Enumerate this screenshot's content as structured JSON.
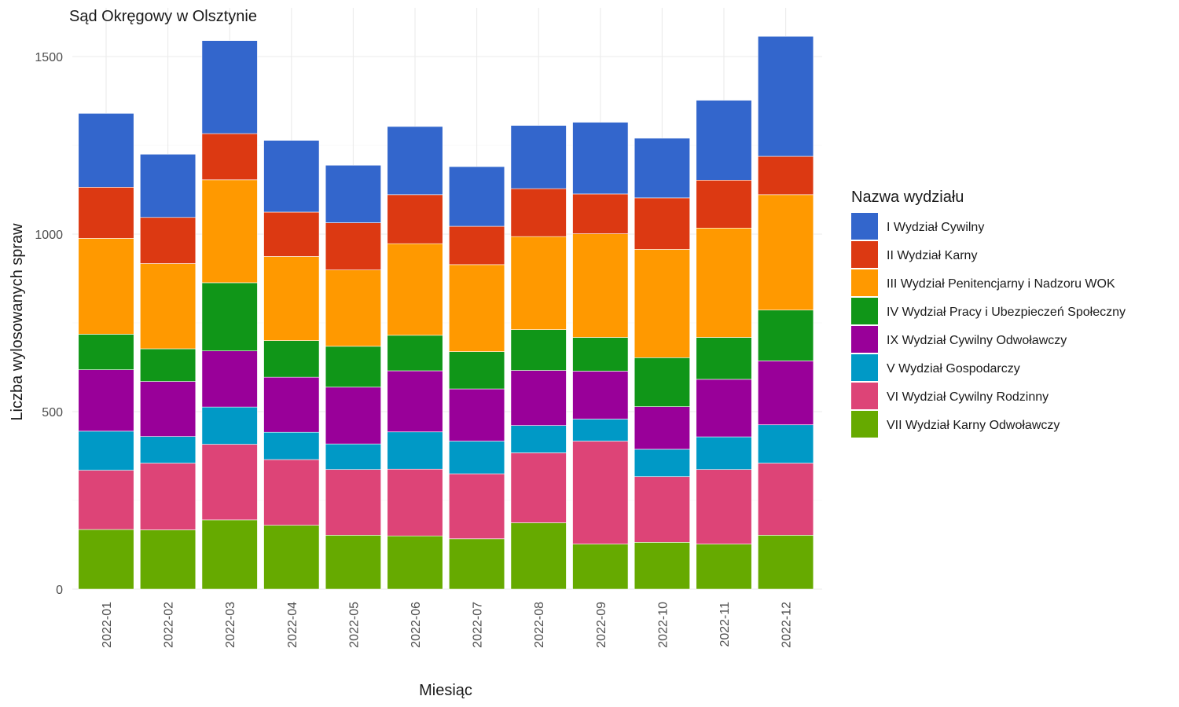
{
  "chart_data": {
    "type": "bar",
    "stacked": true,
    "title": "Sąd Okręgowy w Olsztynie",
    "xlabel": "Miesiąc",
    "ylabel": "Liczba wylosowanych spraw",
    "ylim": [
      0,
      1600
    ],
    "yticks": [
      0,
      500,
      1000,
      1500
    ],
    "grid": true,
    "legend_title": "Nazwa wydziału",
    "legend_position": "right",
    "categories": [
      "2022-01",
      "2022-02",
      "2022-03",
      "2022-04",
      "2022-05",
      "2022-06",
      "2022-07",
      "2022-08",
      "2022-09",
      "2022-10",
      "2022-11",
      "2022-12"
    ],
    "series": [
      {
        "name": "I Wydział Cywilny",
        "color": "#3366CC",
        "values": [
          208,
          178,
          262,
          202,
          162,
          192,
          168,
          178,
          202,
          168,
          225,
          338
        ]
      },
      {
        "name": "II Wydział Karny",
        "color": "#DC3912",
        "values": [
          144,
          130,
          130,
          125,
          133,
          138,
          108,
          135,
          112,
          145,
          135,
          108
        ]
      },
      {
        "name": "III Wydział Penitencjarny i Nadzoru WOK",
        "color": "#FF9900",
        "values": [
          270,
          240,
          290,
          237,
          215,
          258,
          245,
          262,
          292,
          305,
          308,
          325
        ]
      },
      {
        "name": "IV Wydział Pracy i Ubezpieczeń Społeczny",
        "color": "#109618",
        "values": [
          100,
          92,
          192,
          103,
          115,
          100,
          105,
          115,
          95,
          138,
          118,
          143
        ]
      },
      {
        "name": "IX Wydział Cywilny Odwoławczy",
        "color": "#990099",
        "values": [
          173,
          155,
          158,
          155,
          160,
          172,
          147,
          155,
          135,
          120,
          162,
          180
        ]
      },
      {
        "name": "V Wydział Gospodarczy",
        "color": "#0099C6",
        "values": [
          110,
          75,
          105,
          77,
          72,
          105,
          92,
          77,
          62,
          77,
          92,
          108
        ]
      },
      {
        "name": "VI Wydział Cywilny Rodzinny",
        "color": "#DD4477",
        "values": [
          167,
          188,
          213,
          185,
          185,
          188,
          183,
          197,
          290,
          185,
          210,
          203
        ]
      },
      {
        "name": "VII Wydział Karny Odwoławczy",
        "color": "#66AA00",
        "values": [
          168,
          167,
          195,
          180,
          152,
          150,
          142,
          187,
          127,
          132,
          127,
          152
        ]
      }
    ]
  }
}
